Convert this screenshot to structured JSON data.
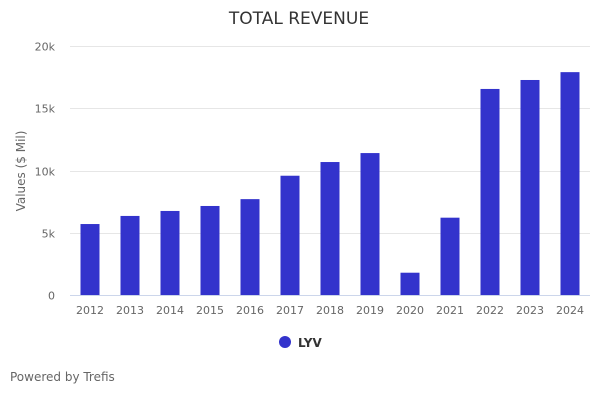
{
  "chart_data": {
    "type": "bar",
    "title": "TOTAL REVENUE",
    "xlabel": "",
    "ylabel": "Values ($ Mil)",
    "categories": [
      "2012",
      "2013",
      "2014",
      "2015",
      "2016",
      "2017",
      "2018",
      "2019",
      "2020",
      "2021",
      "2022",
      "2023",
      "2024"
    ],
    "series": [
      {
        "name": "LYV",
        "color": "#3333cc",
        "values": [
          5700,
          6350,
          6750,
          7150,
          7700,
          9580,
          10680,
          11400,
          1790,
          6210,
          16550,
          17270,
          17900
        ]
      }
    ],
    "ylim": [
      0,
      20000
    ],
    "yticks": [
      0,
      5000,
      10000,
      15000,
      20000
    ],
    "ytick_labels": [
      "0",
      "5k",
      "10k",
      "15k",
      "20k"
    ],
    "grid": true,
    "legend_position": "bottom-center"
  },
  "credit": "Powered by Trefis"
}
